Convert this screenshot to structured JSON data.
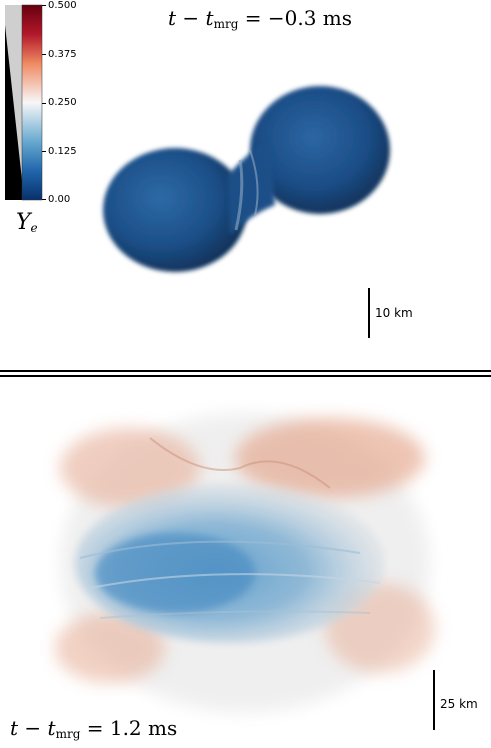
{
  "top_panel": {
    "time_label": {
      "lhs_t": "t",
      "op": "−",
      "t_sym": "t",
      "sub": "mrg",
      "rhs": "= −0.3 ms"
    },
    "scale_label": "10 km"
  },
  "bottom_panel": {
    "time_label": {
      "lhs_t": "t",
      "op": "−",
      "t_sym": "t",
      "sub": "mrg",
      "rhs": "= 1.2 ms"
    },
    "scale_label": "25 km"
  },
  "colorbar": {
    "variable_symbol": "Y",
    "variable_sub": "e",
    "ticks": [
      "0.500",
      "0.375",
      "0.250",
      "0.125",
      "0.00"
    ],
    "colors": {
      "low": "#08306b",
      "mid": "#f2f2f2",
      "high": "#67000d"
    }
  }
}
